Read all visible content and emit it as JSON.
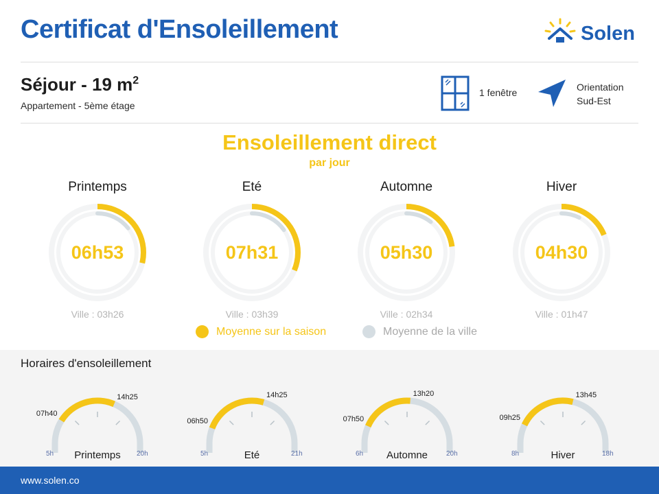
{
  "header": {
    "title": "Certificat d'Ensoleillement",
    "brand": "Solen",
    "logo_icon": "sun-house-icon"
  },
  "room": {
    "name": "Séjour - 19 m",
    "area_exponent": "2",
    "subtitle": "Appartement - 5ème étage",
    "windows_label": "1 fenêtre",
    "windows_icon": "window-icon",
    "orientation_line1": "Orientation",
    "orientation_line2": "Sud-Est",
    "orientation_icon": "direction-arrow-icon"
  },
  "sunshine": {
    "title": "Ensoleillement direct",
    "subtitle": "par jour",
    "seasons": [
      {
        "name": "Printemps",
        "value": "06h53",
        "hours": 6.883,
        "city_label": "Ville : 03h26",
        "city_hours": 3.433
      },
      {
        "name": "Eté",
        "value": "07h31",
        "hours": 7.517,
        "city_label": "Ville : 03h39",
        "city_hours": 3.65
      },
      {
        "name": "Automne",
        "value": "05h30",
        "hours": 5.5,
        "city_label": "Ville : 02h34",
        "city_hours": 2.567
      },
      {
        "name": "Hiver",
        "value": "04h30",
        "hours": 4.5,
        "city_label": "Ville : 01h47",
        "city_hours": 1.783
      }
    ],
    "legend": {
      "season_avg": "Moyenne sur la saison",
      "city_avg": "Moyenne de la ville"
    }
  },
  "hours": {
    "title": "Horaires d'ensoleillement",
    "gauges": [
      {
        "name": "Printemps",
        "min_label": "5h",
        "max_label": "20h",
        "min": 5,
        "max": 20,
        "start_label": "07h40",
        "end_label": "14h25",
        "start": 7.667,
        "end": 14.417
      },
      {
        "name": "Eté",
        "min_label": "5h",
        "max_label": "21h",
        "min": 5,
        "max": 21,
        "start_label": "06h50",
        "end_label": "14h25",
        "start": 6.833,
        "end": 14.417
      },
      {
        "name": "Automne",
        "min_label": "6h",
        "max_label": "20h",
        "min": 6,
        "max": 20,
        "start_label": "07h50",
        "end_label": "13h20",
        "start": 7.833,
        "end": 13.333
      },
      {
        "name": "Hiver",
        "min_label": "8h",
        "max_label": "18h",
        "min": 8,
        "max": 18,
        "start_label": "09h25",
        "end_label": "13h45",
        "start": 9.417,
        "end": 13.75
      }
    ]
  },
  "colors": {
    "brand_blue": "#1f5fb4",
    "sun_yellow": "#f5c518",
    "city_grey": "#d5dde2"
  },
  "footer": {
    "url": "www.solen.co"
  }
}
